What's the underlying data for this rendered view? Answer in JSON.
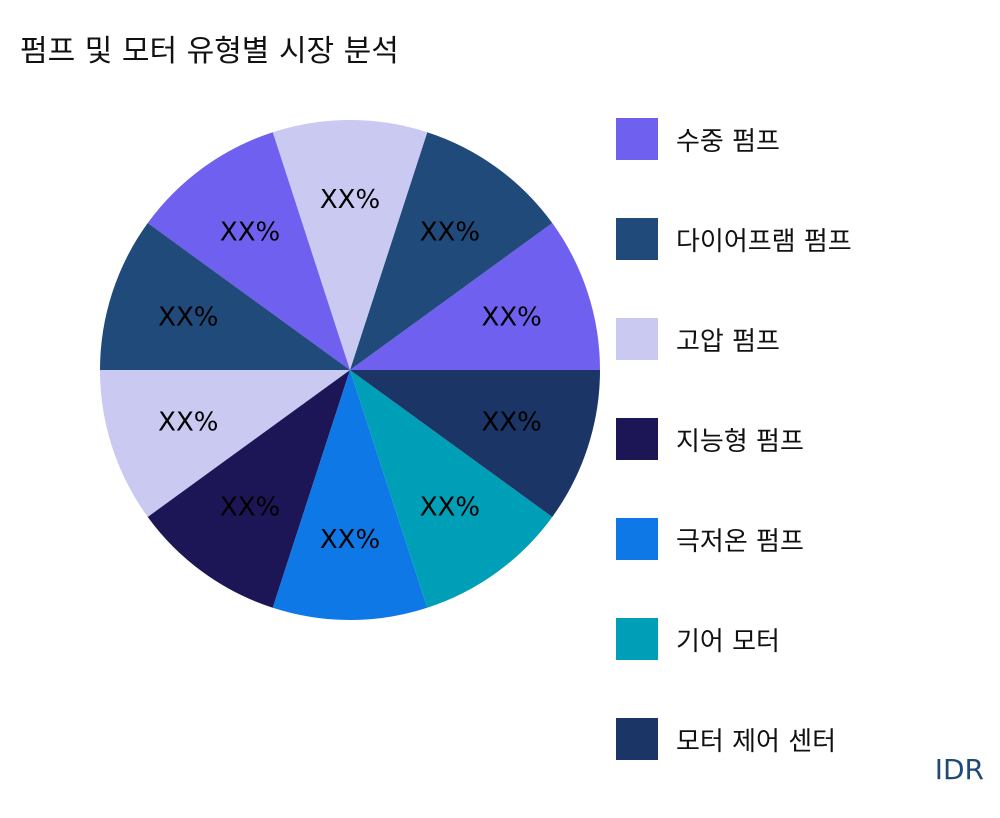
{
  "chart_data": {
    "type": "pie",
    "title": "펌프 및 모터 유형별 시장 분석",
    "categories": [
      "수중 펌프",
      "다이어프램 펌프",
      "고압 펌프",
      "지능형 펌프",
      "극저온 펌프",
      "기어 모터",
      "모터 제어 센터"
    ],
    "slices": [
      {
        "category": "수중 펌프",
        "value": 10,
        "label": "XX%",
        "color": "#7060f0"
      },
      {
        "category": "다이어프램 펌프",
        "value": 10,
        "label": "XX%",
        "color": "#1f4a7a"
      },
      {
        "category": "고압 펌프",
        "value": 10,
        "label": "XX%",
        "color": "#c9c9f2"
      },
      {
        "category": "수중 펌프",
        "value": 10,
        "label": "XX%",
        "color": "#7060f0"
      },
      {
        "category": "다이어프램 펌프",
        "value": 10,
        "label": "XX%",
        "color": "#1f4a7a"
      },
      {
        "category": "고압 펌프",
        "value": 10,
        "label": "XX%",
        "color": "#c9c9f2"
      },
      {
        "category": "지능형 펌프",
        "value": 10,
        "label": "XX%",
        "color": "#1d1656"
      },
      {
        "category": "극저온 펌프",
        "value": 10,
        "label": "XX%",
        "color": "#0e78e6"
      },
      {
        "category": "기어 모터",
        "value": 10,
        "label": "XX%",
        "color": "#009fb8"
      },
      {
        "category": "모터 제어 센터",
        "value": 10,
        "label": "XX%",
        "color": "#1a3566"
      }
    ],
    "legend": {
      "position": "right",
      "entries": [
        {
          "label": "수중 펌프",
          "color": "#7060f0"
        },
        {
          "label": "다이어프램 펌프",
          "color": "#1f4a7a"
        },
        {
          "label": "고압 펌프",
          "color": "#c9c9f2"
        },
        {
          "label": "지능형 펌프",
          "color": "#1d1656"
        },
        {
          "label": "극저온 펌프",
          "color": "#0e78e6"
        },
        {
          "label": "기어 모터",
          "color": "#009fb8"
        },
        {
          "label": "모터 제어 센터",
          "color": "#1a3566"
        }
      ]
    }
  },
  "watermark": "IDR"
}
